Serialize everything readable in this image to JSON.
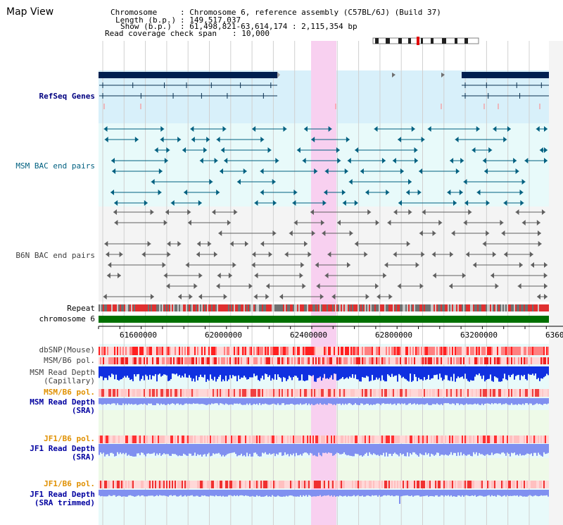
{
  "title": "Map View",
  "info": {
    "chromosome_label": "Chromosome",
    "chromosome_value": ": Chromosome 6, reference assembly (C57BL/6J) (Build 37)",
    "length_label": "Length (b.p.)",
    "length_value": ": 149,517,037",
    "show_label": "Show (b.p.)",
    "show_value": ": 61,498,821-63,614,174 : 2,115,354 bp",
    "coverage_label": "Read coverage check span",
    "coverage_value": ": 10,000"
  },
  "tracks": {
    "refseq": "RefSeq Genes",
    "msm_bac": "MSM BAC end pairs",
    "b6n_bac": "B6N BAC end pairs",
    "repeat": "Repeat",
    "chromosome": "chromosome 6",
    "dbsnp": "dbSNP(Mouse)",
    "msm_b6_pol_1": "MSM/B6 pol.",
    "msm_depth_cap_1": "MSM Read Depth",
    "msm_depth_cap_2": "(Capillary)",
    "msm_b6_pol_2": "MSM/B6 pol.",
    "msm_depth_sra_1": "MSM Read Depth",
    "msm_depth_sra_2": "(SRA)",
    "jf1_b6_pol_1": "JF1/B6 pol.",
    "jf1_depth_sra_1": "JF1 Read Depth",
    "jf1_depth_sra_2": "(SRA)",
    "jf1_b6_pol_2": "JF1/B6 pol.",
    "jf1_depth_trim_1": "JF1 Read Depth",
    "jf1_depth_trim_2": "(SRA trimmed)"
  },
  "axis": {
    "ticks": [
      "61600000",
      "62000000",
      "62400000",
      "62800000",
      "63200000",
      "6360"
    ]
  },
  "colors": {
    "highlight": "#f8d0f0",
    "refseq_bg": "#d8f0fa",
    "bac_bg": "#e8fafa",
    "gene": "#002050",
    "msm_bac": "#006080",
    "b6n_bac": "#606060",
    "chromosome_bar": "#007000",
    "snp": "#ff3030",
    "depth_blue": "#1030e0",
    "depth_light": "#8090f0"
  }
}
